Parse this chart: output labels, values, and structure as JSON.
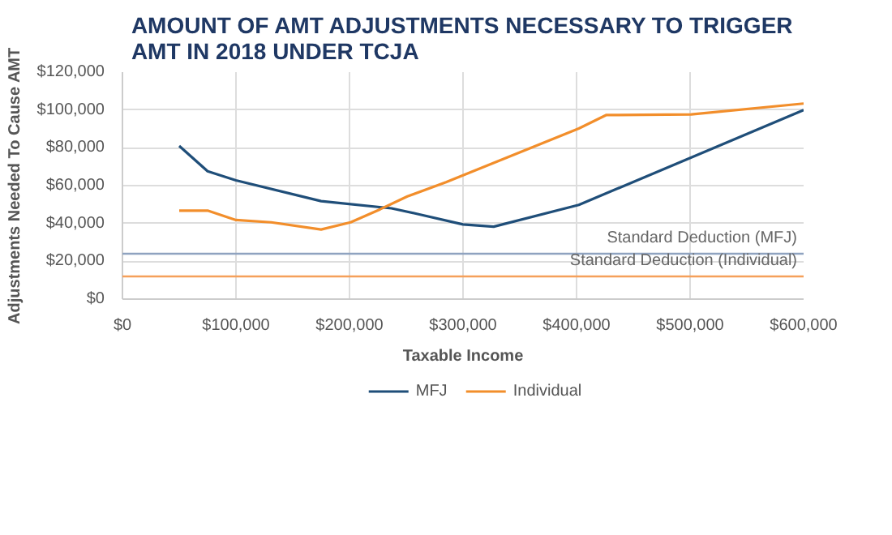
{
  "chart_data": {
    "type": "line",
    "title": "AMOUNT OF AMT ADJUSTMENTS NECESSARY TO TRIGGER AMT IN 2018 UNDER TCJA",
    "xlabel": "Taxable Income",
    "ylabel": "Adjustments Needed To Cause AMT",
    "series": [
      {
        "name": "MFJ",
        "color": "#1f4e79",
        "x": [
          50000,
          75000,
          100000,
          175000,
          237000,
          260000,
          300000,
          327000,
          402000,
          600000
        ],
        "values": [
          81000,
          67600,
          62800,
          51800,
          48000,
          45000,
          39500,
          38300,
          49800,
          100000
        ]
      },
      {
        "name": "Individual",
        "color": "#f28e2b",
        "x": [
          50000,
          75000,
          100000,
          131000,
          175000,
          201000,
          227000,
          251000,
          285000,
          402000,
          426000,
          501000,
          600000
        ],
        "values": [
          46800,
          46800,
          41800,
          40600,
          36800,
          40600,
          47500,
          54300,
          61800,
          90200,
          97300,
          97700,
          103400
        ]
      }
    ],
    "ref_lines": [
      {
        "axis": "y",
        "value": 24000,
        "label": "Standard Deduction (MFJ)",
        "color": "#8fa3c0"
      },
      {
        "axis": "y",
        "value": 12000,
        "label": "Standard Deduction (Individual)",
        "color": "#f5a05a"
      }
    ],
    "xlim": [
      0,
      600000
    ],
    "ylim": [
      0,
      120000
    ],
    "xticks": [
      {
        "value": 0,
        "label": "$0"
      },
      {
        "value": 100000,
        "label": "$100,000"
      },
      {
        "value": 200000,
        "label": "$200,000"
      },
      {
        "value": 300000,
        "label": "$300,000"
      },
      {
        "value": 400000,
        "label": "$400,000"
      },
      {
        "value": 500000,
        "label": "$500,000"
      },
      {
        "value": 600000,
        "label": "$600,000"
      }
    ],
    "yticks": [
      {
        "value": 0,
        "label": "$0"
      },
      {
        "value": 20000,
        "label": "$20,000"
      },
      {
        "value": 40000,
        "label": "$40,000"
      },
      {
        "value": 60000,
        "label": "$60,000"
      },
      {
        "value": 80000,
        "label": "$80,000"
      },
      {
        "value": 100000,
        "label": "$100,000"
      },
      {
        "value": 120000,
        "label": "$120,000"
      }
    ],
    "grid": true,
    "legend": "bottom",
    "line_style": "solid",
    "marker": "none"
  }
}
